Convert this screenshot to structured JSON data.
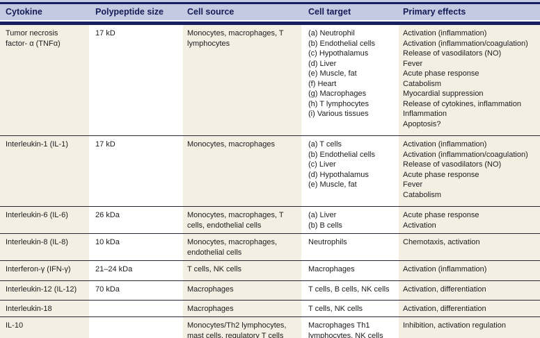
{
  "colors": {
    "header_bg": "#c5cae3",
    "navy_rule": "#161f5f",
    "column_beige": "#f3efe3",
    "column_white": "#ffffff",
    "row_separator": "#252531",
    "header_text": "#131c55",
    "body_text": "#1c1c1c"
  },
  "table": {
    "columns": [
      "Cytokine",
      "Polypeptide size",
      "Cell source",
      "Cell target",
      "Primary effects"
    ],
    "rows": [
      {
        "cytokine": "Tumor necrosis\nfactor- α (TNFα)",
        "size": "17 kD",
        "source": "Monocytes, macrophages, T\nlymphocytes",
        "target": "(a)  Neutrophil\n(b)  Endothelial cells\n(c)  Hypothalamus\n(d)  Liver\n(e)  Muscle, fat\n(f)   Heart\n(g)  Macrophages\n(h)  T lymphocytes\n(i)   Various tissues",
        "effects": "Activation (inflammation)\nActivation (inflammation/coagulation)\nRelease of vasodilators (NO)\nFever\nAcute phase response\nCatabolism\nMyocardial suppression\nRelease of cytokines, inflammation\nInflammation\nApoptosis?"
      },
      {
        "cytokine": "Interleukin-1 (IL-1)",
        "size": "17 kD",
        "source": "Monocytes, macrophages",
        "target": "(a)  T cells\n(b)  Endothelial cells\n(c)  Liver\n(d)  Hypothalamus\n(e)  Muscle, fat",
        "effects": "Activation (inflammation)\nActivation (inflammation/coagulation)\nRelease of vasodilators (NO)\nAcute phase response\nFever\nCatabolism"
      },
      {
        "cytokine": "Interleukin-6 (IL-6)",
        "size": "26 kDa",
        "source": "Monocytes, macrophages, T\ncells, endothelial cells",
        "target": "(a)  Liver\n(b)  B cells",
        "effects": "Acute phase response\nActivation"
      },
      {
        "cytokine": "Interleukin-8 (IL-8)",
        "size": "10 kDa",
        "source": "Monocytes, macrophages,\nendothelial cells",
        "target": "Neutrophils",
        "effects": "Chemotaxis, activation"
      },
      {
        "cytokine": "Interferon-γ (IFN-γ)",
        "size": "21–24 kDa",
        "source": "T cells, NK cells",
        "target": "Macrophages",
        "effects": "Activation (inflammation)"
      },
      {
        "cytokine": "Interleukin-12 (IL-12)",
        "size": "70 kDa",
        "source": "Macrophages",
        "target": "T cells, B cells, NK cells",
        "effects": "Activation, differentiation"
      },
      {
        "cytokine": "Interleukin-18",
        "size": "",
        "source": "Macrophages",
        "target": "T cells, NK cells",
        "effects": "Activation, differentiation"
      },
      {
        "cytokine": "IL-10",
        "size": "",
        "source": "Monocytes/Th2 lymphocytes,\nmast cells, regulatory T cells",
        "target": "Macrophages Th1\nlymphocytes, NK cells",
        "effects": "Inhibition, activation regulation"
      }
    ]
  }
}
